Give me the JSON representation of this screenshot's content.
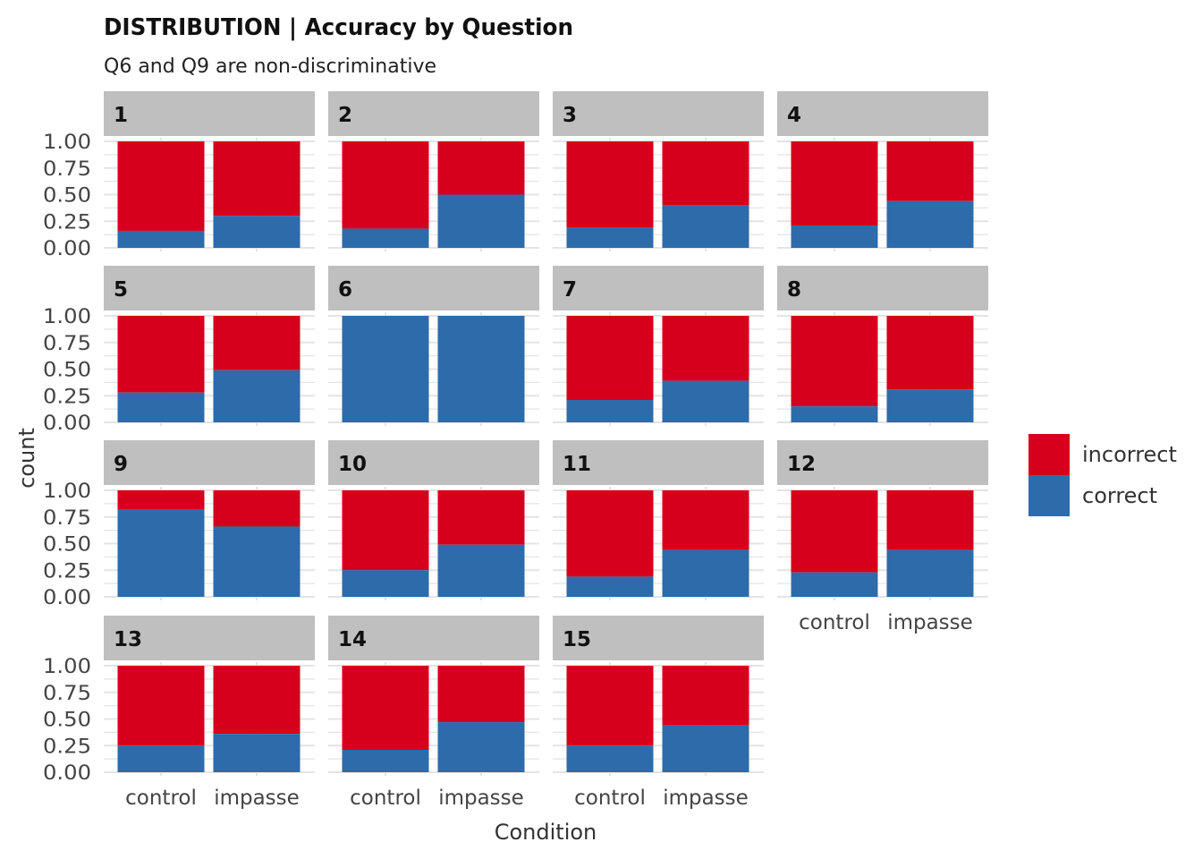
{
  "chart_data": {
    "type": "bar",
    "title": "DISTRIBUTION | Accuracy by Question",
    "subtitle": "Q6 and Q9 are non-discriminative",
    "xlabel": "Condition",
    "ylabel": "count",
    "ylim": [
      0,
      1
    ],
    "yticks": [
      "0.00",
      "0.25",
      "0.50",
      "0.75",
      "1.00"
    ],
    "yticks_values": [
      0,
      0.25,
      0.5,
      0.75,
      1
    ],
    "categories": [
      "control",
      "impasse"
    ],
    "stacked": true,
    "grid": true,
    "legend_position": "right",
    "legend": [
      {
        "name": "incorrect",
        "color": "#D7001C"
      },
      {
        "name": "correct",
        "color": "#2D6BAA"
      }
    ],
    "series": [
      {
        "name": "incorrect",
        "color": "#D7001C"
      },
      {
        "name": "correct",
        "color": "#2D6BAA"
      }
    ],
    "facets": [
      {
        "label": "1",
        "correct": [
          0.16,
          0.3
        ]
      },
      {
        "label": "2",
        "correct": [
          0.18,
          0.5
        ]
      },
      {
        "label": "3",
        "correct": [
          0.19,
          0.4
        ]
      },
      {
        "label": "4",
        "correct": [
          0.21,
          0.44
        ]
      },
      {
        "label": "5",
        "correct": [
          0.28,
          0.49
        ]
      },
      {
        "label": "6",
        "correct": [
          1.0,
          1.0
        ]
      },
      {
        "label": "7",
        "correct": [
          0.21,
          0.39
        ]
      },
      {
        "label": "8",
        "correct": [
          0.15,
          0.31
        ]
      },
      {
        "label": "9",
        "correct": [
          0.82,
          0.66
        ]
      },
      {
        "label": "10",
        "correct": [
          0.25,
          0.49
        ]
      },
      {
        "label": "11",
        "correct": [
          0.19,
          0.44
        ]
      },
      {
        "label": "12",
        "correct": [
          0.23,
          0.44
        ]
      },
      {
        "label": "13",
        "correct": [
          0.25,
          0.36
        ]
      },
      {
        "label": "14",
        "correct": [
          0.21,
          0.47
        ]
      },
      {
        "label": "15",
        "correct": [
          0.25,
          0.44
        ]
      }
    ]
  }
}
